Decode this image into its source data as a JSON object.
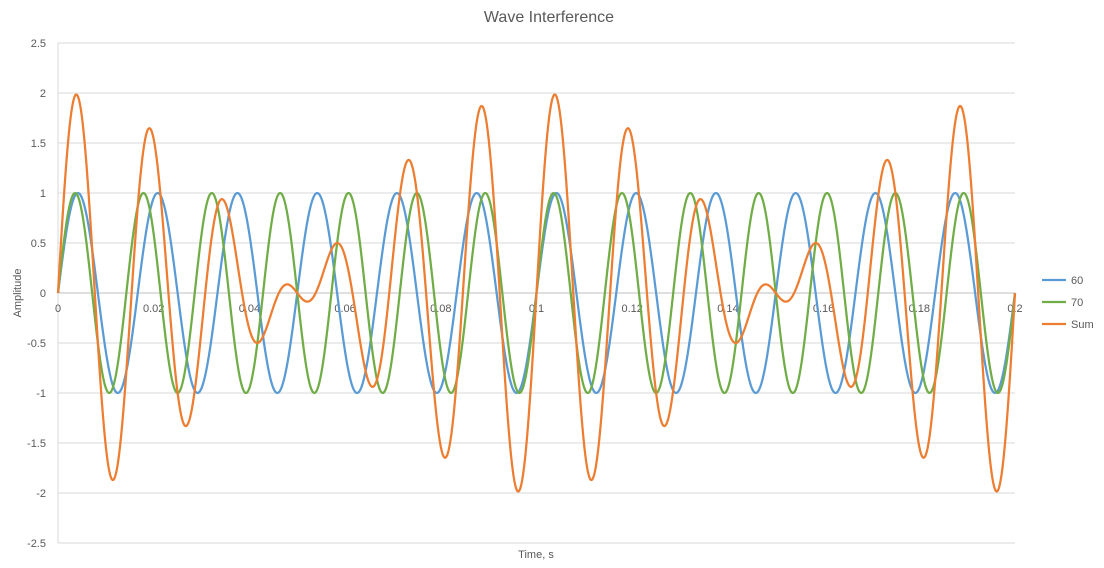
{
  "chart_data": {
    "type": "line",
    "title": "Wave Interference",
    "xlabel": "Time, s",
    "ylabel": "Amplitude",
    "xlim": [
      0,
      0.2
    ],
    "ylim": [
      -2.5,
      2.5
    ],
    "x_ticks": [
      0,
      0.02,
      0.04,
      0.06,
      0.08,
      0.1,
      0.12,
      0.14,
      0.16,
      0.18,
      0.2
    ],
    "x_tick_labels": [
      "0",
      "0.02",
      "0.04",
      "0.06",
      "0.08",
      "0.1",
      "0.12",
      "0.14",
      "0.16",
      "0.18",
      "0.2"
    ],
    "y_ticks": [
      2.5,
      2,
      1.5,
      1,
      0.5,
      0,
      -0.5,
      -1,
      -1.5,
      -2,
      -2.5
    ],
    "y_tick_labels": [
      "2.5",
      "2",
      "1.5",
      "1",
      "0.5",
      "0",
      "-0.5",
      "-1",
      "-1.5",
      "-2",
      "-2.5"
    ],
    "grid": "horizontal",
    "legend_position": "right",
    "series": [
      {
        "name": "60",
        "color": "#5B9BD5",
        "function": "sin(2*pi*60*t)"
      },
      {
        "name": "70",
        "color": "#70AD47",
        "function": "sin(2*pi*70*t)"
      },
      {
        "name": "Sum",
        "color": "#ED7D31",
        "function": "sin(2*pi*60*t) + sin(2*pi*70*t)"
      }
    ],
    "sample_step": 0.0002
  }
}
